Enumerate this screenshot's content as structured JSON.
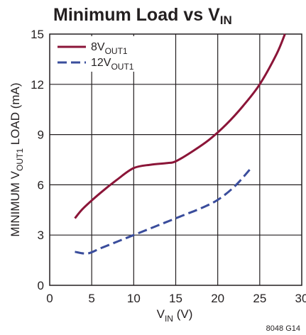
{
  "chart_data": {
    "type": "line",
    "title": {
      "main": "Minimum Load vs V",
      "sub": "IN"
    },
    "xlabel": {
      "main": "V",
      "sub": "IN",
      "suffix": " (V)"
    },
    "ylabel": {
      "pre": "MINIMUM V",
      "sub": "OUT1",
      "post": " LOAD (mA)"
    },
    "xlim": [
      0,
      30
    ],
    "ylim": [
      0,
      15
    ],
    "x_ticks": [
      "0",
      "5",
      "10",
      "15",
      "20",
      "25",
      "30"
    ],
    "y_ticks": [
      "0",
      "3",
      "6",
      "9",
      "12",
      "15"
    ],
    "grid": true,
    "legend_position": "top-left",
    "series": [
      {
        "name": {
          "main": "8V",
          "sub": "OUT1"
        },
        "color": "#8b1538",
        "style": "solid",
        "points": [
          [
            3,
            4.0
          ],
          [
            4,
            4.6
          ],
          [
            6,
            5.5
          ],
          [
            8,
            6.3
          ],
          [
            10,
            7.0
          ],
          [
            12,
            7.2
          ],
          [
            14,
            7.3
          ],
          [
            15,
            7.4
          ],
          [
            17,
            8.0
          ],
          [
            19,
            8.7
          ],
          [
            21,
            9.6
          ],
          [
            23,
            10.7
          ],
          [
            25,
            12.0
          ],
          [
            27,
            13.8
          ],
          [
            28,
            15.0
          ]
        ]
      },
      {
        "name": {
          "main": "12V",
          "sub": "OUT1"
        },
        "color": "#3a4d9c",
        "style": "dashed",
        "points": [
          [
            3,
            2.0
          ],
          [
            4.5,
            1.9
          ],
          [
            6,
            2.2
          ],
          [
            8,
            2.6
          ],
          [
            10,
            3.0
          ],
          [
            12,
            3.4
          ],
          [
            14,
            3.8
          ],
          [
            16,
            4.2
          ],
          [
            18,
            4.6
          ],
          [
            20,
            5.1
          ],
          [
            22,
            5.9
          ],
          [
            23.8,
            6.9
          ]
        ]
      }
    ],
    "figure_id": "8048 G14"
  }
}
